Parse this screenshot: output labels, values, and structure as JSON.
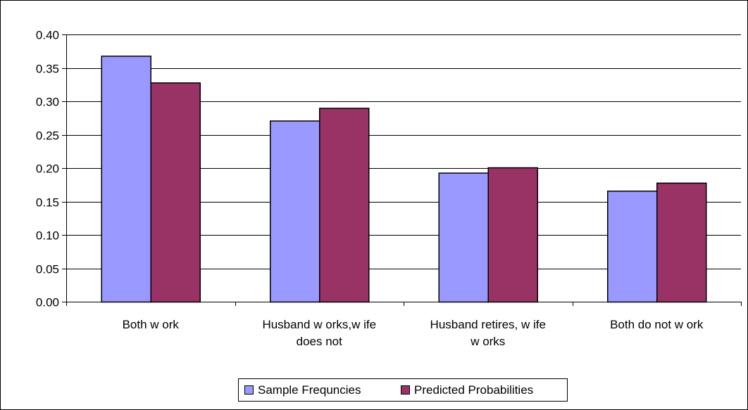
{
  "chart_data": {
    "type": "bar",
    "categories": [
      [
        "Both w ork"
      ],
      [
        "Husband w orks,w ife",
        "does not"
      ],
      [
        "Husband retires, w ife",
        "w orks"
      ],
      [
        "Both do not w ork"
      ]
    ],
    "series": [
      {
        "name": "Sample Frequncies",
        "color": "#9999ff",
        "values": [
          0.368,
          0.271,
          0.193,
          0.166
        ]
      },
      {
        "name": "Predicted Probabilities",
        "color": "#993366",
        "values": [
          0.328,
          0.29,
          0.201,
          0.178
        ]
      }
    ],
    "title": "",
    "xlabel": "",
    "ylabel": "",
    "ylim": [
      0,
      0.4
    ],
    "y_ticks": [
      "0.00",
      "0.05",
      "0.10",
      "0.15",
      "0.20",
      "0.25",
      "0.30",
      "0.35",
      "0.40"
    ],
    "grid": true,
    "legend_position": "bottom"
  }
}
